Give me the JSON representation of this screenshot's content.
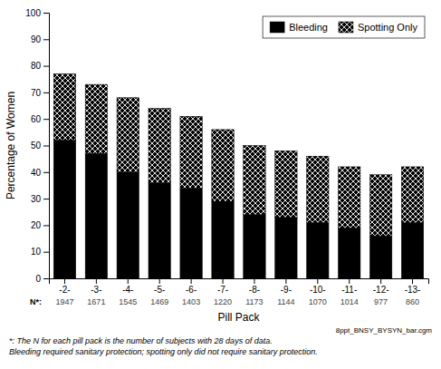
{
  "chart_data": {
    "type": "bar",
    "stacked": true,
    "categories": [
      "-2-",
      "-3-",
      "-4-",
      "-5-",
      "-6-",
      "-7-",
      "-8-",
      "-9-",
      "-10-",
      "-11-",
      "-12-",
      "-13-"
    ],
    "series": [
      {
        "name": "Bleeding",
        "color": "#000000",
        "values": [
          52,
          47,
          40,
          36,
          34,
          29,
          24,
          23,
          21,
          19,
          16,
          21
        ]
      },
      {
        "name": "Spotting Only",
        "color": "#000000",
        "values": [
          25,
          26,
          28,
          28,
          27,
          27,
          26,
          25,
          25,
          23,
          23,
          21
        ]
      }
    ],
    "n_label": "N*:",
    "n_values": [
      1947,
      1671,
      1545,
      1469,
      1403,
      1220,
      1173,
      1144,
      1070,
      1014,
      977,
      860
    ],
    "xlabel": "Pill Pack",
    "ylabel": "Percentage of Women",
    "ylim": [
      0,
      100
    ],
    "yticks": [
      0,
      10,
      20,
      30,
      40,
      50,
      60,
      70,
      80,
      90,
      100
    ],
    "grid": false,
    "legend": "upper right",
    "annotations": [
      "8ppt_BNSY_BYSYN_bar.cgm",
      "*: The N for each pill pack is the number of subjects with 28 days of data.",
      "Bleeding required sanitary protection; spotting only did not require sanitary protection."
    ]
  }
}
